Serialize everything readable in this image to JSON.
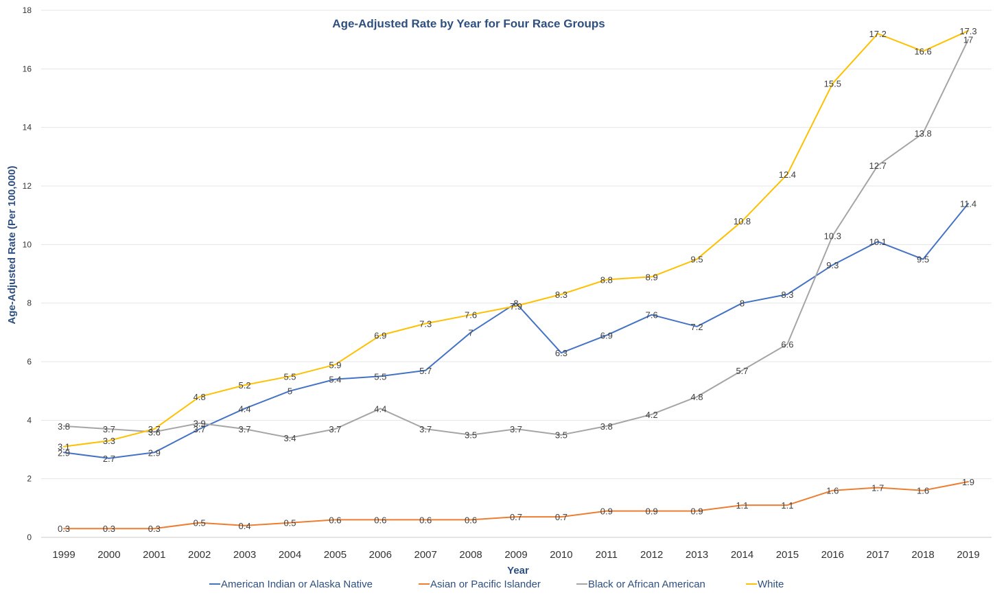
{
  "chart_data": {
    "type": "line",
    "title": "Age-Adjusted Rate by Year for Four Race Groups",
    "xlabel": "Year",
    "ylabel": "Age-Adjusted Rate (Per 100,000)",
    "ylim": [
      0,
      18
    ],
    "yticks": [
      "0",
      "2",
      "4",
      "6",
      "8",
      "10",
      "12",
      "14",
      "16",
      "18"
    ],
    "grid": true,
    "legend_position": "bottom",
    "categories": [
      "1999",
      "2000",
      "2001",
      "2002",
      "2003",
      "2004",
      "2005",
      "2006",
      "2007",
      "2008",
      "2009",
      "2010",
      "2011",
      "2012",
      "2013",
      "2014",
      "2015",
      "2016",
      "2017",
      "2018",
      "2019"
    ],
    "series": [
      {
        "name": "American Indian or Alaska Native",
        "color": "#4472c4",
        "values": [
          2.9,
          2.7,
          2.9,
          3.7,
          4.4,
          5,
          5.4,
          5.5,
          5.7,
          7,
          8,
          6.3,
          6.9,
          7.6,
          7.2,
          8,
          8.3,
          9.3,
          10.1,
          9.5,
          11.4
        ]
      },
      {
        "name": "Asian or Pacific Islander",
        "color": "#ed7d31",
        "values": [
          0.3,
          0.3,
          0.3,
          0.5,
          0.4,
          0.5,
          0.6,
          0.6,
          0.6,
          0.6,
          0.7,
          0.7,
          0.9,
          0.9,
          0.9,
          1.1,
          1.1,
          1.6,
          1.7,
          1.6,
          1.9
        ]
      },
      {
        "name": "Black or African American",
        "color": "#a5a5a5",
        "values": [
          3.8,
          3.7,
          3.6,
          3.9,
          3.7,
          3.4,
          3.7,
          4.4,
          3.7,
          3.5,
          3.7,
          3.5,
          3.8,
          4.2,
          4.8,
          5.7,
          6.6,
          10.3,
          12.7,
          13.8,
          17
        ]
      },
      {
        "name": "White",
        "color": "#ffc000",
        "values": [
          3.1,
          3.3,
          3.7,
          4.8,
          5.2,
          5.5,
          5.9,
          6.9,
          7.3,
          7.6,
          7.9,
          8.3,
          8.8,
          8.9,
          9.5,
          10.8,
          12.4,
          15.5,
          17.2,
          16.6,
          17.3
        ]
      }
    ]
  }
}
